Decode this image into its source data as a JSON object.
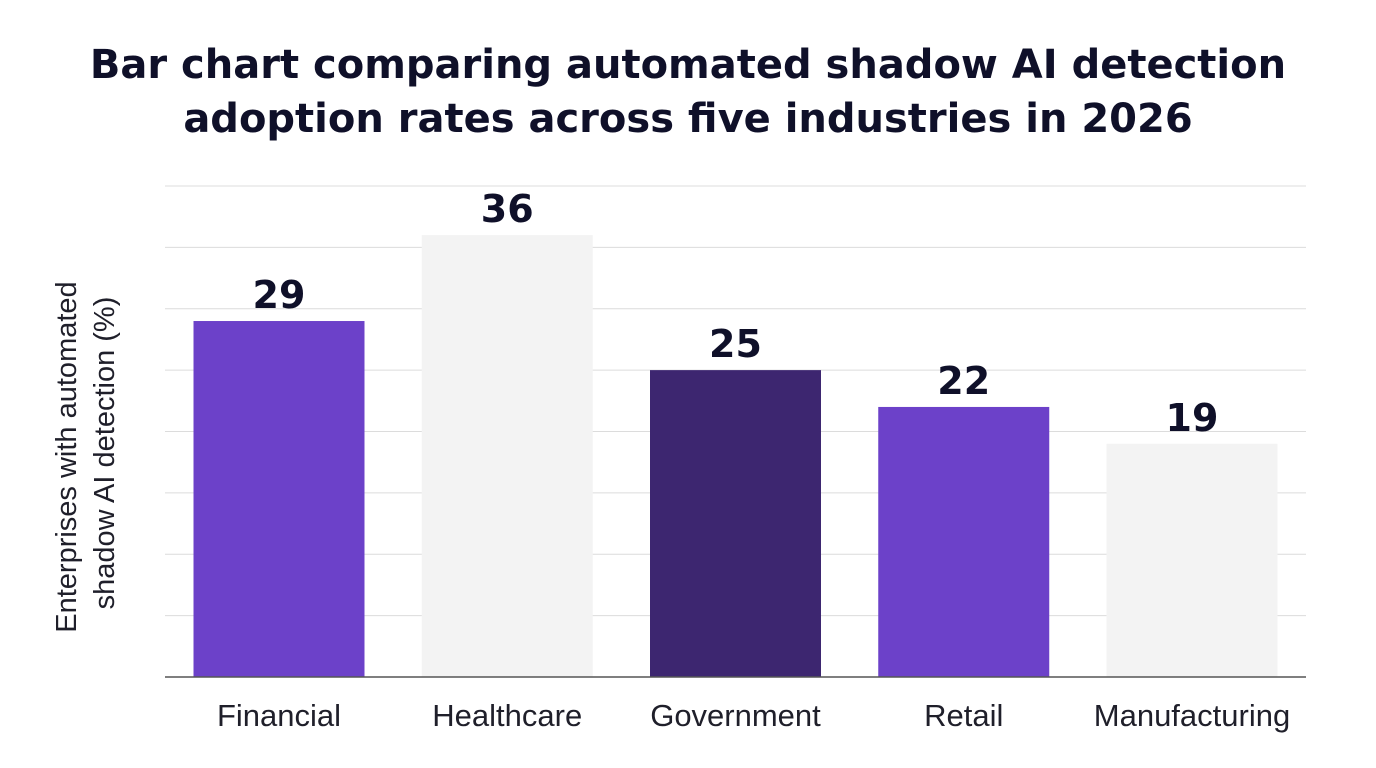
{
  "chart_data": {
    "type": "bar",
    "title": "Bar chart comparing automated shadow AI detection adoption rates across five industries in 2026",
    "title_lines": [
      "Bar chart comparing automated shadow AI detection",
      "adoption rates across five industries in 2026"
    ],
    "xlabel": "",
    "ylabel": "Enterprises with automated shadow AI detection (%)",
    "ylabel_lines": [
      "Enterprises with automated",
      "shadow AI detection (%)"
    ],
    "categories": [
      "Financial",
      "Healthcare",
      "Government",
      "Retail",
      "Manufacturing"
    ],
    "values": [
      29,
      36,
      25,
      22,
      19
    ],
    "bar_colors": [
      "#6c41c9",
      "#f3f3f3",
      "#3d2670",
      "#6c41c9",
      "#f3f3f3"
    ],
    "ylim": [
      0,
      40
    ],
    "grid": true,
    "legend": "none"
  }
}
